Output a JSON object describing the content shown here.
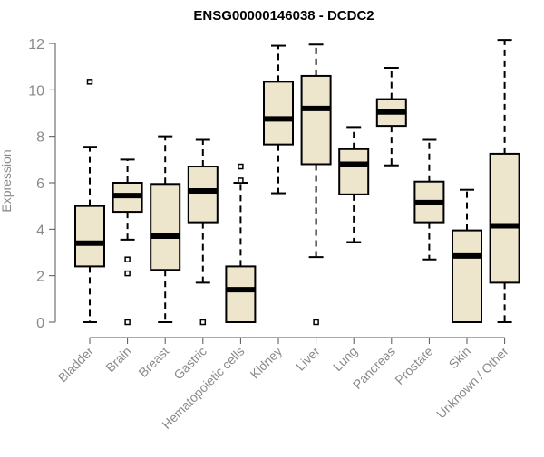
{
  "chart_data": {
    "type": "box",
    "title": "ENSG00000146038 - DCDC2",
    "xlabel": "",
    "ylabel": "Expression",
    "ylim": [
      0,
      12.2
    ],
    "yticks": [
      0,
      2,
      4,
      6,
      8,
      10,
      12
    ],
    "categories": [
      "Bladder",
      "Brain",
      "Breast",
      "Gastric",
      "Hematopoietic cells",
      "Kidney",
      "Liver",
      "Lung",
      "Pancreas",
      "Prostate",
      "Skin",
      "Unknown / Other"
    ],
    "boxes": [
      {
        "category": "Bladder",
        "whisker_low": 0.0,
        "q1": 2.4,
        "median": 3.4,
        "q3": 5.0,
        "whisker_high": 7.55,
        "outliers": [
          10.35
        ]
      },
      {
        "category": "Brain",
        "whisker_low": 3.55,
        "q1": 4.75,
        "median": 5.45,
        "q3": 6.0,
        "whisker_high": 7.0,
        "outliers": [
          2.7,
          2.1,
          0.0
        ]
      },
      {
        "category": "Breast",
        "whisker_low": 0.0,
        "q1": 2.25,
        "median": 3.7,
        "q3": 5.95,
        "whisker_high": 8.0,
        "outliers": []
      },
      {
        "category": "Gastric",
        "whisker_low": 1.7,
        "q1": 4.3,
        "median": 5.65,
        "q3": 6.7,
        "whisker_high": 7.85,
        "outliers": [
          0.0
        ]
      },
      {
        "category": "Hematopoietic cells",
        "whisker_low": 0.0,
        "q1": 0.0,
        "median": 1.4,
        "q3": 2.4,
        "whisker_high": 6.0,
        "outliers": [
          6.7,
          6.1
        ]
      },
      {
        "category": "Kidney",
        "whisker_low": 5.55,
        "q1": 7.65,
        "median": 8.75,
        "q3": 10.35,
        "whisker_high": 11.9,
        "outliers": []
      },
      {
        "category": "Liver",
        "whisker_low": 2.8,
        "q1": 6.8,
        "median": 9.2,
        "q3": 10.6,
        "whisker_high": 11.95,
        "outliers": [
          0.0
        ]
      },
      {
        "category": "Lung",
        "whisker_low": 3.45,
        "q1": 5.5,
        "median": 6.8,
        "q3": 7.45,
        "whisker_high": 8.4,
        "outliers": []
      },
      {
        "category": "Pancreas",
        "whisker_low": 6.75,
        "q1": 8.45,
        "median": 9.05,
        "q3": 9.6,
        "whisker_high": 10.95,
        "outliers": []
      },
      {
        "category": "Prostate",
        "whisker_low": 2.7,
        "q1": 4.3,
        "median": 5.15,
        "q3": 6.05,
        "whisker_high": 7.85,
        "outliers": []
      },
      {
        "category": "Skin",
        "whisker_low": 0.0,
        "q1": 0.0,
        "median": 2.85,
        "q3": 3.95,
        "whisker_high": 5.7,
        "outliers": []
      },
      {
        "category": "Unknown / Other",
        "whisker_low": 0.0,
        "q1": 1.7,
        "median": 4.15,
        "q3": 7.25,
        "whisker_high": 12.15,
        "outliers": []
      }
    ],
    "grid": false,
    "legend": "none",
    "colors": {
      "box_fill": "#ede6cc",
      "box_stroke": "#000000",
      "median": "#000000",
      "axis": "#555555",
      "tick_label": "#8a8a8a",
      "title": "#000000"
    }
  }
}
